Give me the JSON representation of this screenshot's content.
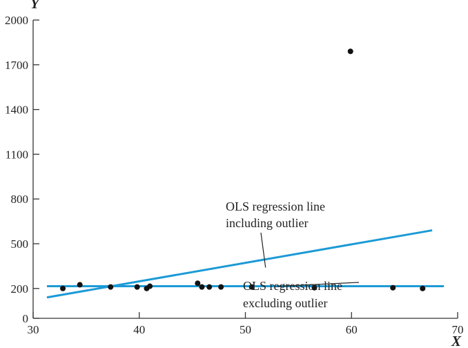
{
  "chart_data": {
    "type": "scatter",
    "title": "",
    "xlabel": "X",
    "ylabel": "Y",
    "xlim": [
      30,
      70
    ],
    "ylim": [
      0,
      2000
    ],
    "x_ticks": [
      30,
      40,
      50,
      60,
      70
    ],
    "y_ticks": [
      0,
      200,
      500,
      800,
      1100,
      1400,
      1700,
      2000
    ],
    "grid": false,
    "colors": {
      "points": "#111111",
      "lines": "#1b9ad6",
      "axes": "#333333"
    },
    "points": [
      {
        "x": 32.8,
        "y": 200
      },
      {
        "x": 34.4,
        "y": 225
      },
      {
        "x": 37.3,
        "y": 210
      },
      {
        "x": 39.8,
        "y": 210
      },
      {
        "x": 40.7,
        "y": 200
      },
      {
        "x": 41.0,
        "y": 215
      },
      {
        "x": 45.5,
        "y": 235
      },
      {
        "x": 45.9,
        "y": 210
      },
      {
        "x": 46.6,
        "y": 210
      },
      {
        "x": 47.7,
        "y": 210
      },
      {
        "x": 50.6,
        "y": 210
      },
      {
        "x": 56.5,
        "y": 205
      },
      {
        "x": 59.9,
        "y": 1790
      },
      {
        "x": 63.9,
        "y": 205
      },
      {
        "x": 66.7,
        "y": 200
      }
    ],
    "lines": [
      {
        "name": "OLS regression line including outlier",
        "x": [
          31.3,
          67.6
        ],
        "y": [
          140,
          590
        ]
      },
      {
        "name": "OLS regression line excluding outlier",
        "x": [
          31.3,
          68.7
        ],
        "y": [
          215,
          215
        ]
      }
    ],
    "annotations": [
      {
        "lines": [
          "OLS regression line",
          "including outlier"
        ],
        "points_to": {
          "x": 51.9,
          "y": 340
        }
      },
      {
        "lines": [
          "OLS regression line",
          "excluding outlier"
        ],
        "points_to": {
          "x": 53.1,
          "y": 215
        }
      }
    ]
  }
}
